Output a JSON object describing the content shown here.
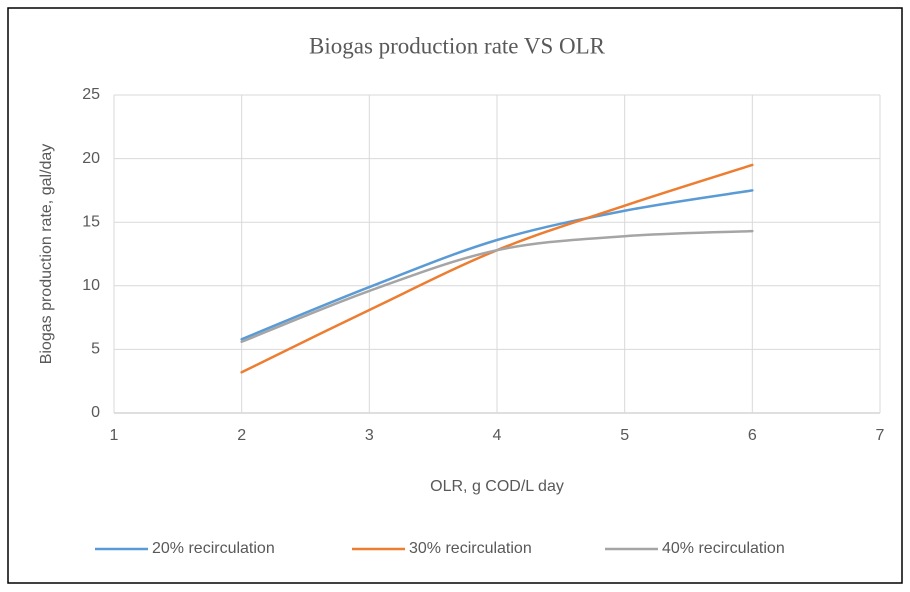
{
  "chart_data": {
    "type": "line",
    "title": "Biogas production rate VS OLR",
    "xlabel": "OLR, g COD/L day",
    "ylabel": "Biogas production rate, gal/day",
    "x": [
      2,
      3,
      4,
      5,
      6
    ],
    "series": [
      {
        "name": "20% recirculation",
        "color": "#5b9bd5",
        "values": [
          5.8,
          9.9,
          13.6,
          15.9,
          17.5
        ]
      },
      {
        "name": "30% recirculation",
        "color": "#ed7d31",
        "values": [
          3.2,
          8.1,
          12.8,
          16.3,
          19.5
        ]
      },
      {
        "name": "40% recirculation",
        "color": "#a5a5a5",
        "values": [
          5.6,
          9.6,
          12.8,
          13.9,
          14.3
        ]
      }
    ],
    "xlim": [
      1,
      7
    ],
    "xticks": [
      1,
      2,
      3,
      4,
      5,
      6,
      7
    ],
    "ylim": [
      0,
      25
    ],
    "yticks": [
      0,
      5,
      10,
      15,
      20,
      25
    ],
    "grid": true,
    "smooth": true,
    "legend": "bottom"
  }
}
